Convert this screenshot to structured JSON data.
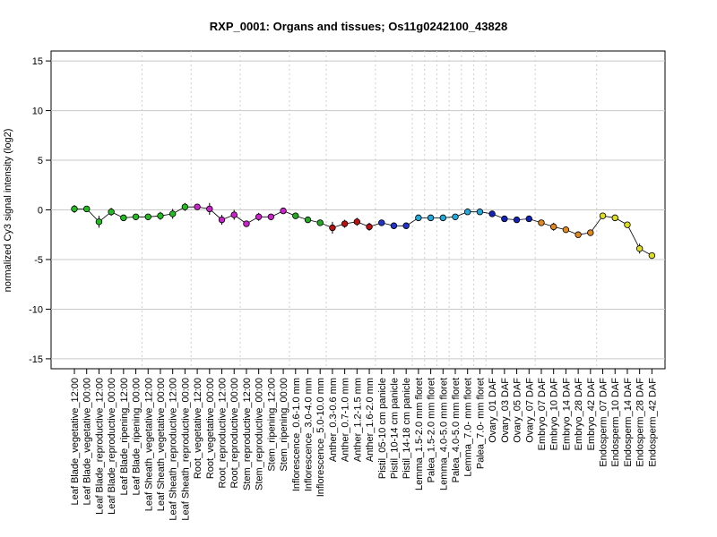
{
  "chart_data": {
    "type": "line",
    "title": "RXP_0001: Organs and tissues; Os11g0242100_43828",
    "ylabel": "normalized Cy3 signal intensity (log2)",
    "xlabel": "",
    "ylim": [
      -16,
      16
    ],
    "yticks": [
      -15,
      -10,
      -5,
      0,
      5,
      10,
      15
    ],
    "grid": true,
    "categories": [
      "Leaf Blade_vegetative_12:00",
      "Leaf Blade_vegetative_00:00",
      "Leaf Blade_reproductive_12:00",
      "Leaf Blade_reproductive_00:00",
      "Leaf Blade_ripening_12:00",
      "Leaf Blade_ripening_00:00",
      "Leaf Sheath_vegetative_12:00",
      "Leaf Sheath_vegetative_00:00",
      "Leaf Sheath_reproductive_12:00",
      "Leaf Sheath_reproductive_00:00",
      "Root_vegetative_12:00",
      "Root_vegetative_00:00",
      "Root_reproductive_12:00",
      "Root_reproductive_00:00",
      "Stem_reproductive_12:00",
      "Stem_reproductive_00:00",
      "Stem_ripening_12:00",
      "Stem_ripening_00:00",
      "Inflorescence_0.6-1.0 mm",
      "Inflorescence_3.0-4.0 mm",
      "Inflorescence_5.0-10.0 mm",
      "Anther_0.3-0.6 mm",
      "Anther_0.7-1.0 mm",
      "Anther_1.2-1.5 mm",
      "Anther_1.6-2.0 mm",
      "Pistil_05-10 cm panicle",
      "Pistil_10-14 cm panicle",
      "Pistil_14-18 cm panicle",
      "Lemma_1.5-2.0 mm floret",
      "Palea_1.5-2.0 mm floret",
      "Lemma_4.0-5.0 mm floret",
      "Palea_4.0-5.0 mm floret",
      "Lemma_7.0- mm floret",
      "Palea_7.0- mm floret",
      "Ovary_01 DAF",
      "Ovary_03 DAF",
      "Ovary_05 DAF",
      "Ovary_07 DAF",
      "Embryo_07 DAF",
      "Embryo_10 DAF",
      "Embryo_14 DAF",
      "Embryo_28 DAF",
      "Embryo_42 DAF",
      "Endosperm_07 DAF",
      "Endosperm_10 DAF",
      "Endosperm_14 DAF",
      "Endosperm_28 DAF",
      "Endosperm_42 DAF"
    ],
    "series": [
      {
        "values": [
          0.1,
          0.1,
          -1.2,
          -0.2,
          -0.8,
          -0.7,
          -0.7,
          -0.6,
          -0.4,
          0.3,
          0.3,
          0.1,
          -1.0,
          -0.5,
          -1.4,
          -0.7,
          -0.7,
          -0.1,
          -0.6,
          -1.0,
          -1.3,
          -1.8,
          -1.4,
          -1.2,
          -1.7,
          -1.3,
          -1.6,
          -1.6,
          -0.8,
          -0.8,
          -0.8,
          -0.7,
          -0.2,
          -0.2,
          -0.4,
          -0.9,
          -1.0,
          -0.9,
          -1.3,
          -1.7,
          -2.0,
          -2.5,
          -2.3,
          -0.6,
          -0.8,
          -1.5,
          -3.9,
          -4.6
        ],
        "errors": [
          0.4,
          0.3,
          0.6,
          0.4,
          0.2,
          0.3,
          0.3,
          0.4,
          0.5,
          0.4,
          0.3,
          0.6,
          0.5,
          0.5,
          0.3,
          0.4,
          0.3,
          0.2,
          0.3,
          0.3,
          0.3,
          0.6,
          0.4,
          0.4,
          0.4,
          0.3,
          0.3,
          0.3,
          0.3,
          0.3,
          0.3,
          0.3,
          0.2,
          0.2,
          0.2,
          0.3,
          0.3,
          0.3,
          0.3,
          0.4,
          0.3,
          0.2,
          0.3,
          0.2,
          0.2,
          0.2,
          0.5,
          0.3
        ],
        "colors": [
          "#22bb22",
          "#22bb22",
          "#22bb22",
          "#22bb22",
          "#22bb22",
          "#22bb22",
          "#22bb22",
          "#22bb22",
          "#22bb22",
          "#22bb22",
          "#cc22cc",
          "#cc22cc",
          "#cc22cc",
          "#cc22cc",
          "#cc22cc",
          "#cc22cc",
          "#cc22cc",
          "#cc22cc",
          "#22aa22",
          "#22aa22",
          "#22aa22",
          "#bb1111",
          "#bb1111",
          "#bb1111",
          "#bb1111",
          "#2233cc",
          "#2233cc",
          "#2233cc",
          "#22aadd",
          "#22aadd",
          "#22aadd",
          "#22aadd",
          "#22aadd",
          "#22aadd",
          "#1122bb",
          "#1122bb",
          "#1122bb",
          "#1122bb",
          "#e08820",
          "#e08820",
          "#e08820",
          "#e08820",
          "#e08820",
          "#dddd22",
          "#dddd22",
          "#dddd22",
          "#dddd22",
          "#dddd22"
        ]
      }
    ]
  }
}
